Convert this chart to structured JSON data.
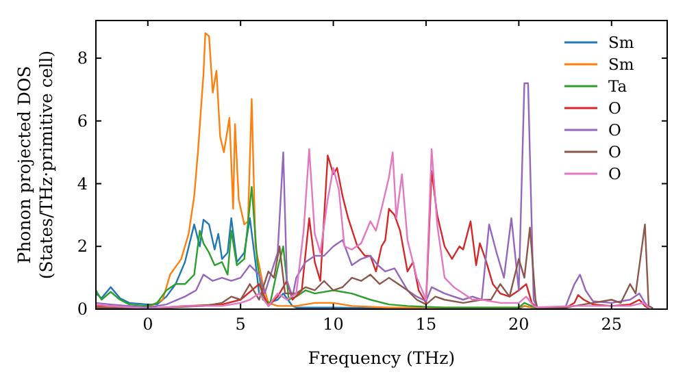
{
  "chart_data": {
    "type": "line",
    "xlabel": "Frequency (THz)",
    "ylabel": "Phonon projected DOS\n(States/THz·primitive cell)",
    "xlim": [
      -2.8,
      28
    ],
    "ylim": [
      0,
      9.2
    ],
    "xticks": [
      0,
      5,
      10,
      15,
      20,
      25
    ],
    "yticks": [
      0,
      2,
      4,
      6,
      8
    ],
    "legend": "top right",
    "grid": false,
    "marker": "none",
    "line_style": "solid",
    "series": [
      {
        "name": "Sm",
        "color": "#1f77b4",
        "x": [
          -2.8,
          -2.5,
          -2,
          -1.5,
          -1,
          0,
          0.5,
          1,
          1.5,
          2,
          2.5,
          2.8,
          3,
          3.3,
          3.6,
          3.8,
          4,
          4.3,
          4.5,
          4.8,
          5.2,
          5.5,
          5.8,
          6,
          6.5,
          7,
          7.3,
          7.8,
          8,
          10,
          15,
          20,
          20.3,
          21
        ],
        "values": [
          0.5,
          0.35,
          0.7,
          0.35,
          0.2,
          0.15,
          0.15,
          0.4,
          0.8,
          1.5,
          2.7,
          2.0,
          2.85,
          2.7,
          1.9,
          2.4,
          1.6,
          1.8,
          2.9,
          1.5,
          1.8,
          2.9,
          1.5,
          0.5,
          0.2,
          0.3,
          0.5,
          0.1,
          0.05,
          0.05,
          0.02,
          0.02,
          0.1,
          0.02
        ]
      },
      {
        "name": "Sm",
        "color": "#ff7f0e",
        "x": [
          -2.8,
          0,
          0.8,
          1.2,
          1.8,
          2.2,
          2.5,
          2.7,
          3,
          3.1,
          3.3,
          3.5,
          3.7,
          3.9,
          4.1,
          4.4,
          4.6,
          4.7,
          4.9,
          5.2,
          5.4,
          5.6,
          5.8,
          6.2,
          6.5,
          7,
          8,
          9,
          10,
          11,
          13,
          20,
          20.3,
          21
        ],
        "values": [
          0.05,
          0.05,
          0.3,
          1.1,
          1.6,
          2.4,
          3.6,
          5,
          7.5,
          8.8,
          8.7,
          6.9,
          7.6,
          5.5,
          5.0,
          6.1,
          3.2,
          5.9,
          3.5,
          2.7,
          2.8,
          6.7,
          2.0,
          0.8,
          0.2,
          0.1,
          0.1,
          0.2,
          0.2,
          0.1,
          0.05,
          0.05,
          0.1,
          0.02
        ]
      },
      {
        "name": "Ta",
        "color": "#2ca02c",
        "x": [
          -2.8,
          -2.5,
          -2,
          -1.5,
          -1,
          0,
          0.5,
          1,
          1.5,
          2,
          2.5,
          2.8,
          3,
          3.3,
          3.6,
          4,
          4.3,
          4.5,
          4.8,
          5.2,
          5.6,
          5.9,
          6.2,
          6.6,
          7,
          7.3,
          7.6,
          8,
          8.5,
          9,
          10,
          11,
          12,
          13,
          14,
          16,
          20,
          20.3,
          21
        ],
        "values": [
          0.6,
          0.3,
          0.55,
          0.3,
          0.15,
          0.1,
          0.2,
          0.6,
          0.8,
          0.8,
          1.1,
          2.5,
          2.1,
          1.8,
          1.4,
          1.5,
          1.1,
          2.5,
          1.4,
          1.6,
          3.9,
          1.5,
          0.3,
          0.2,
          1.3,
          2.0,
          0.3,
          0.4,
          0.6,
          0.5,
          0.6,
          0.5,
          0.3,
          0.15,
          0.1,
          0.05,
          0.05,
          0.2,
          0.02
        ]
      },
      {
        "name": "O",
        "color": "#d62728",
        "x": [
          -2.8,
          -2,
          0,
          2,
          4,
          5,
          6,
          6.5,
          7,
          7.5,
          7.8,
          8.3,
          8.7,
          9,
          9.3,
          9.7,
          10,
          10.2,
          10.5,
          10.8,
          11.3,
          11.7,
          12,
          12.3,
          12.6,
          12.8,
          13,
          13.3,
          13.6,
          14,
          14.3,
          14.6,
          15,
          15.3,
          15.6,
          16,
          16.4,
          16.8,
          17,
          17.4,
          17.7,
          17.9,
          18.2,
          18.6,
          19,
          19.5,
          20,
          20.4,
          20.7,
          21,
          22.5,
          23,
          23.2,
          23.5,
          24,
          25,
          26,
          26.5,
          26.8,
          27
        ],
        "values": [
          0.1,
          0.1,
          0.02,
          0.1,
          0.15,
          0.3,
          0.8,
          0.1,
          0.4,
          0.9,
          0.3,
          0.6,
          2.9,
          1.5,
          0.9,
          4.9,
          4.3,
          4.5,
          3.6,
          2.9,
          2.0,
          1.7,
          1.7,
          1.2,
          2.0,
          2.2,
          3.2,
          3.0,
          2.5,
          1.2,
          1.5,
          0.6,
          0.2,
          4.4,
          3.0,
          2.0,
          1.6,
          2.0,
          1.9,
          2.8,
          1.4,
          2.1,
          1.6,
          0.8,
          0.5,
          0.4,
          0.6,
          0.8,
          0.2,
          0.03,
          0.03,
          0.2,
          0.45,
          0.3,
          0.15,
          0.1,
          0.15,
          0.3,
          0.1,
          0.03
        ]
      },
      {
        "name": "O",
        "color": "#9467bd",
        "x": [
          -2.8,
          -2,
          0,
          1,
          2,
          2.6,
          3,
          3.5,
          4,
          4.5,
          5,
          5.5,
          6,
          6.3,
          7,
          7.3,
          7.5,
          7.8,
          8,
          8.5,
          9,
          9.5,
          10,
          10.5,
          11,
          11.5,
          12,
          12.4,
          12.8,
          13.3,
          13.7,
          14,
          14.5,
          15,
          15.3,
          16,
          17,
          17.5,
          18,
          18.4,
          18.8,
          19.2,
          19.6,
          20,
          20.3,
          20.5,
          20.8,
          21,
          22.5,
          23,
          23.3,
          23.6,
          24,
          25,
          26,
          26.5,
          26.8,
          27
        ],
        "values": [
          0.2,
          0.15,
          0.05,
          0.15,
          0.4,
          0.6,
          1.1,
          0.9,
          1.0,
          0.9,
          1.0,
          1.4,
          1.1,
          0.5,
          1.8,
          5.0,
          0.9,
          0.4,
          1.0,
          1.5,
          1.7,
          1.7,
          2.0,
          2.2,
          1.4,
          1.6,
          1.7,
          1.4,
          1.2,
          1.3,
          0.9,
          0.6,
          0.4,
          0.25,
          0.7,
          0.5,
          0.3,
          0.4,
          0.3,
          2.7,
          1.8,
          1.0,
          2.9,
          0.6,
          7.2,
          7.2,
          0.3,
          0.05,
          0.05,
          0.8,
          1.1,
          0.6,
          0.25,
          0.2,
          0.3,
          0.5,
          0.2,
          0.05
        ]
      },
      {
        "name": "O",
        "color": "#8c564b",
        "x": [
          -2.8,
          0,
          3,
          4,
          4.5,
          5,
          5.5,
          6,
          6.5,
          6.8,
          7.1,
          7.4,
          8,
          8.5,
          9,
          9.5,
          10,
          10.5,
          11,
          11.5,
          12,
          12.5,
          13,
          13.5,
          14,
          14.5,
          15,
          15.5,
          16,
          17,
          18,
          18.5,
          19,
          19.5,
          20,
          20.3,
          20.6,
          20.9,
          21,
          22.5,
          23,
          24,
          25,
          25.5,
          26,
          26.3,
          26.8,
          27,
          27.2
        ],
        "values": [
          0.05,
          0.02,
          0.1,
          0.2,
          0.4,
          0.3,
          0.8,
          0.3,
          1.2,
          1.0,
          2.0,
          0.5,
          0.5,
          0.7,
          0.6,
          0.9,
          0.6,
          0.7,
          1.0,
          0.9,
          1.1,
          0.8,
          1.0,
          0.8,
          0.6,
          0.3,
          0.15,
          0.4,
          0.3,
          0.2,
          0.3,
          0.3,
          0.8,
          0.4,
          1.6,
          1.0,
          2.6,
          0.3,
          0.04,
          0.04,
          0.1,
          0.2,
          0.3,
          0.2,
          0.8,
          0.5,
          2.7,
          0.1,
          0.04
        ]
      },
      {
        "name": "O",
        "color": "#e377c2",
        "x": [
          -2.8,
          -2,
          0,
          2,
          4,
          5,
          5.5,
          6,
          6.5,
          7,
          7.5,
          8,
          8.4,
          8.7,
          9,
          9.3,
          9.7,
          10,
          10.3,
          10.6,
          11,
          11.5,
          12,
          12.3,
          12.6,
          13,
          13.2,
          13.4,
          13.7,
          14,
          14.5,
          15,
          15.3,
          15.6,
          16,
          16.5,
          17,
          17.5,
          18,
          19,
          20,
          20.4,
          20.8,
          21,
          23,
          24,
          26,
          26.7,
          27
        ],
        "values": [
          0.15,
          0.1,
          0.02,
          0.1,
          0.1,
          0.2,
          0.3,
          0.5,
          0.1,
          0.5,
          0.3,
          0.5,
          2.5,
          5.1,
          2.4,
          1.8,
          3.5,
          4.5,
          3.8,
          2.0,
          1.9,
          2.1,
          2.8,
          2.5,
          3.2,
          4.2,
          5.0,
          2.9,
          4.3,
          2.2,
          1.0,
          0.3,
          5.1,
          2.7,
          1.0,
          0.7,
          0.5,
          0.3,
          0.3,
          0.2,
          0.2,
          0.4,
          0.1,
          0.06,
          0.1,
          0.1,
          0.1,
          0.2,
          0.06
        ]
      }
    ]
  }
}
